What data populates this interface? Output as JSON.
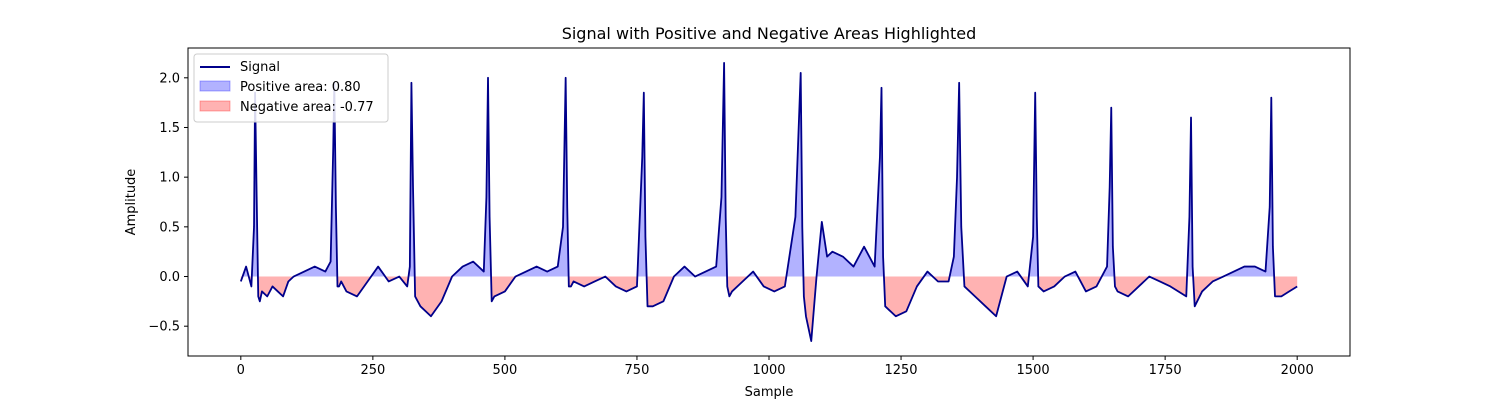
{
  "chart_data": {
    "type": "area",
    "title": "Signal with Positive and Negative Areas Highlighted",
    "xlabel": "Sample",
    "ylabel": "Amplitude",
    "xlim": [
      -100,
      2100
    ],
    "ylim": [
      -0.8,
      2.3
    ],
    "xticks": [
      0,
      250,
      500,
      750,
      1000,
      1250,
      1500,
      1750,
      2000
    ],
    "yticks": [
      -0.5,
      0.0,
      0.5,
      1.0,
      1.5,
      2.0
    ],
    "xtick_labels": [
      "0",
      "250",
      "500",
      "750",
      "1000",
      "1250",
      "1500",
      "1750",
      "2000"
    ],
    "ytick_labels": [
      "−0.5",
      "0.0",
      "0.5",
      "1.0",
      "1.5",
      "2.0"
    ],
    "grid": false,
    "legend_position": "top-left",
    "series": [
      {
        "name": "Signal",
        "color": "#00008b",
        "x": [
          0,
          10,
          20,
          25,
          27,
          30,
          33,
          36,
          40,
          50,
          60,
          70,
          80,
          90,
          100,
          120,
          140,
          160,
          170,
          175,
          177,
          180,
          183,
          186,
          190,
          200,
          220,
          240,
          260,
          280,
          300,
          315,
          320,
          323,
          326,
          330,
          340,
          360,
          380,
          400,
          420,
          440,
          460,
          465,
          468,
          471,
          475,
          480,
          500,
          520,
          540,
          560,
          580,
          600,
          610,
          615,
          618,
          621,
          625,
          630,
          650,
          670,
          690,
          710,
          730,
          750,
          760,
          763,
          766,
          770,
          780,
          800,
          820,
          840,
          860,
          880,
          900,
          910,
          915,
          918,
          921,
          925,
          930,
          950,
          970,
          990,
          1010,
          1030,
          1050,
          1060,
          1063,
          1066,
          1070,
          1080,
          1090,
          1100,
          1110,
          1120,
          1140,
          1160,
          1180,
          1200,
          1210,
          1213,
          1216,
          1220,
          1240,
          1260,
          1280,
          1300,
          1320,
          1340,
          1350,
          1356,
          1360,
          1364,
          1370,
          1390,
          1410,
          1430,
          1450,
          1470,
          1490,
          1500,
          1504,
          1507,
          1510,
          1520,
          1540,
          1560,
          1580,
          1600,
          1620,
          1640,
          1645,
          1648,
          1651,
          1655,
          1660,
          1680,
          1700,
          1720,
          1740,
          1760,
          1790,
          1796,
          1799,
          1802,
          1806,
          1820,
          1840,
          1860,
          1880,
          1900,
          1920,
          1940,
          1948,
          1951,
          1954,
          1958,
          1970,
          1985,
          2000
        ],
        "y": [
          -0.05,
          0.1,
          -0.1,
          0.5,
          1.85,
          0.8,
          -0.2,
          -0.25,
          -0.15,
          -0.2,
          -0.1,
          -0.15,
          -0.2,
          -0.05,
          0.0,
          0.05,
          0.1,
          0.05,
          0.15,
          1.3,
          1.95,
          0.7,
          -0.1,
          -0.1,
          -0.05,
          -0.15,
          -0.2,
          -0.05,
          0.1,
          -0.05,
          0.0,
          -0.1,
          0.1,
          1.95,
          0.9,
          -0.2,
          -0.3,
          -0.4,
          -0.25,
          0.0,
          0.1,
          0.15,
          0.05,
          0.8,
          2.0,
          0.6,
          -0.25,
          -0.2,
          -0.15,
          0.0,
          0.05,
          0.1,
          0.05,
          0.1,
          0.5,
          2.0,
          0.7,
          -0.1,
          -0.1,
          -0.05,
          -0.1,
          -0.05,
          0.0,
          -0.1,
          -0.15,
          -0.1,
          1.2,
          1.85,
          0.4,
          -0.3,
          -0.3,
          -0.25,
          0.0,
          0.1,
          0.0,
          0.05,
          0.1,
          0.8,
          2.15,
          0.6,
          -0.1,
          -0.2,
          -0.15,
          -0.05,
          0.05,
          -0.1,
          -0.15,
          -0.1,
          0.6,
          2.05,
          0.5,
          -0.2,
          -0.4,
          -0.65,
          0.0,
          0.55,
          0.2,
          0.25,
          0.2,
          0.1,
          0.3,
          0.1,
          1.2,
          1.9,
          0.2,
          -0.3,
          -0.4,
          -0.35,
          -0.1,
          0.05,
          -0.05,
          -0.05,
          0.2,
          1.0,
          1.95,
          0.5,
          -0.1,
          -0.2,
          -0.3,
          -0.4,
          0.0,
          0.05,
          -0.1,
          0.4,
          1.85,
          0.6,
          -0.1,
          -0.15,
          -0.1,
          0.0,
          0.05,
          -0.15,
          -0.1,
          0.1,
          0.9,
          1.7,
          0.3,
          -0.1,
          -0.15,
          -0.2,
          -0.1,
          0.0,
          -0.05,
          -0.1,
          -0.2,
          0.6,
          1.6,
          0.1,
          -0.3,
          -0.15,
          -0.05,
          0.0,
          0.05,
          0.1,
          0.1,
          0.05,
          0.7,
          1.8,
          0.3,
          -0.2,
          -0.2,
          -0.15,
          -0.1
        ]
      }
    ],
    "fills": [
      {
        "name": "Positive area: 0.80",
        "color": "#0000ff",
        "alpha": 0.3,
        "where": "y>0"
      },
      {
        "name": "Negative area: -0.77",
        "color": "#ff0000",
        "alpha": 0.3,
        "where": "y<0"
      }
    ]
  }
}
